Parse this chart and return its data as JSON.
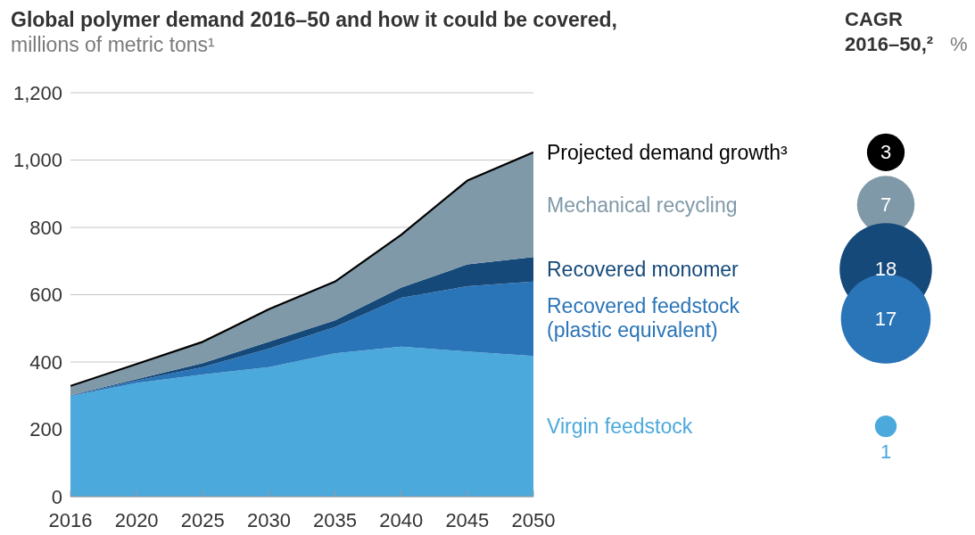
{
  "chart_data": [
    {
      "type": "area",
      "title": "Global polymer demand 2016–50 and how it could be covered,",
      "subtitle": "millions of metric tons¹",
      "categories": [
        "2016",
        "2020",
        "2025",
        "2030",
        "2035",
        "2040",
        "2045",
        "2050"
      ],
      "stacked": true,
      "series": [
        {
          "name": "Virgin feedstock",
          "color": "#4ba9dc",
          "values": [
            299,
            338,
            363,
            385,
            426,
            446,
            431,
            418
          ]
        },
        {
          "name": "Recovered feedstock (plastic equivalent)",
          "color": "#2a74b8",
          "values": [
            1,
            7,
            22,
            55,
            78,
            145,
            194,
            221
          ]
        },
        {
          "name": "Recovered monomer",
          "color": "#15497a",
          "values": [
            1,
            4,
            12,
            20,
            20,
            30,
            65,
            73
          ]
        },
        {
          "name": "Mechanical recycling",
          "color": "#7f99a8",
          "values": [
            28,
            45,
            63,
            97,
            115,
            157,
            249,
            311
          ]
        }
      ],
      "annotations": [
        {
          "text": "Projected demand growth³",
          "x": "2050",
          "y": 1023
        }
      ],
      "ylim": [
        0,
        1200
      ],
      "yticks": [
        0,
        200,
        400,
        600,
        800,
        {
          "value": 1000,
          "label": "1,000"
        },
        {
          "value": 1200,
          "label": "1,200"
        }
      ],
      "grid": "y"
    },
    {
      "type": "other",
      "title": "CAGR 2016–50,²",
      "subtitle": "%",
      "values": [
        3,
        7,
        18,
        17,
        1
      ],
      "colors": [
        "#000000",
        "#7f99a8",
        "#15497a",
        "#2a74b8",
        "#4ba9dc"
      ],
      "data_labels": true
    }
  ]
}
